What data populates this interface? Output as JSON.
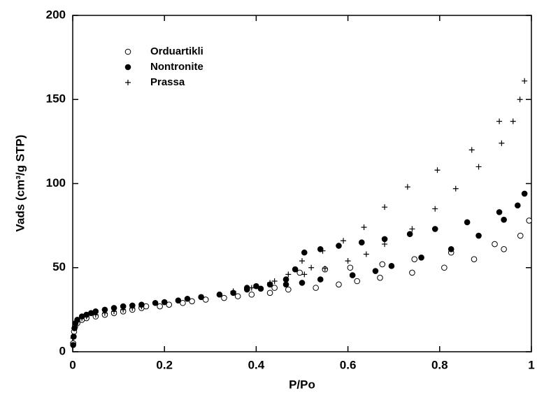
{
  "chart_data": {
    "type": "scatter",
    "x_label": "P/Po",
    "y_label": "Vads (cm³/g STP)",
    "xlim": [
      0,
      1
    ],
    "xticks": [
      0,
      0.2,
      0.4,
      0.6,
      0.8,
      1
    ],
    "ylim": [
      0,
      200
    ],
    "yticks": [
      0,
      50,
      100,
      150,
      200
    ],
    "grid": false,
    "legend": "upper-left",
    "series": [
      {
        "name": "Orduartikli",
        "color": "#000000",
        "marker": "open-circle",
        "x": [
          0.001,
          0.002,
          0.003,
          0.005,
          0.01,
          0.02,
          0.03,
          0.05,
          0.07,
          0.09,
          0.11,
          0.13,
          0.15,
          0.16,
          0.19,
          0.21,
          0.24,
          0.26,
          0.29,
          0.33,
          0.36,
          0.39,
          0.43,
          0.47,
          0.53,
          0.58,
          0.62,
          0.67,
          0.74,
          0.81,
          0.875,
          0.94,
          0.976,
          0.995,
          0.92,
          0.825,
          0.745,
          0.675,
          0.605,
          0.55,
          0.495,
          0.44
        ],
        "values": [
          5,
          9,
          12,
          15,
          17,
          19,
          20,
          21,
          22,
          23,
          24,
          25,
          26,
          27,
          27,
          28,
          29,
          30,
          31,
          32,
          33,
          34,
          35,
          37,
          38,
          40,
          42,
          44,
          47,
          50,
          55,
          61,
          69,
          78,
          64,
          59,
          55,
          52,
          50,
          49,
          47,
          38
        ]
      },
      {
        "name": "Nontronite",
        "color": "#000000",
        "marker": "filled-circle",
        "x": [
          0.001,
          0.002,
          0.004,
          0.006,
          0.01,
          0.02,
          0.03,
          0.04,
          0.05,
          0.07,
          0.09,
          0.11,
          0.13,
          0.15,
          0.18,
          0.2,
          0.23,
          0.25,
          0.28,
          0.32,
          0.35,
          0.38,
          0.41,
          0.43,
          0.465,
          0.5,
          0.54,
          0.61,
          0.66,
          0.695,
          0.76,
          0.825,
          0.885,
          0.94,
          0.985,
          0.97,
          0.93,
          0.86,
          0.79,
          0.735,
          0.68,
          0.63,
          0.58,
          0.54,
          0.505,
          0.485,
          0.465,
          0.38,
          0.4
        ],
        "values": [
          4,
          9,
          14,
          17,
          19,
          21,
          22,
          23,
          24,
          25,
          26,
          27,
          27.5,
          28,
          29,
          29.5,
          30.5,
          31.5,
          32.5,
          34,
          35,
          37,
          37.5,
          40,
          43,
          41,
          43,
          45.5,
          48,
          51,
          56,
          61,
          69,
          78.5,
          94,
          87,
          83,
          77,
          73,
          70,
          67,
          65,
          63,
          61,
          59,
          49,
          40,
          38,
          39
        ]
      },
      {
        "name": "Prassa",
        "color": "#000000",
        "marker": "plus",
        "x": [
          0.001,
          0.003,
          0.005,
          0.01,
          0.02,
          0.03,
          0.05,
          0.07,
          0.09,
          0.11,
          0.13,
          0.15,
          0.35,
          0.39,
          0.43,
          0.47,
          0.5,
          0.52,
          0.55,
          0.6,
          0.64,
          0.68,
          0.74,
          0.79,
          0.835,
          0.885,
          0.935,
          0.975,
          0.985,
          0.96,
          0.93,
          0.87,
          0.795,
          0.73,
          0.68,
          0.635,
          0.59,
          0.545,
          0.505,
          0.44
        ],
        "values": [
          8,
          14,
          17,
          19,
          20,
          21,
          22,
          23,
          24,
          25,
          26,
          27,
          36,
          38,
          41,
          46,
          54,
          50,
          49.5,
          54,
          58,
          64,
          73,
          85,
          97,
          110,
          124,
          150,
          161,
          137,
          137,
          120,
          108,
          98,
          86,
          74,
          66,
          60,
          46,
          42
        ]
      }
    ]
  }
}
